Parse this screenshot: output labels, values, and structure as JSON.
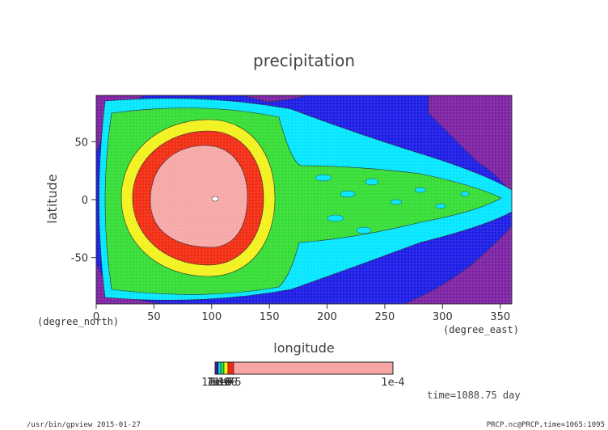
{
  "chart_data": {
    "type": "heatmap",
    "title": "precipitation",
    "xlabel": "longitude",
    "ylabel": "latitude",
    "x_unit": "(degree_east)",
    "y_unit": "(degree_north)",
    "xlim": [
      0,
      360
    ],
    "ylim": [
      -90,
      90
    ],
    "x_ticks": [
      0,
      50,
      100,
      150,
      200,
      250,
      300,
      350
    ],
    "y_ticks": [
      -50,
      0,
      50
    ],
    "colorbar": {
      "labels": [
        "1e-10",
        "1e-9",
        "1e-8",
        "1e-7",
        "1e-6",
        "1e-5",
        "1e-4"
      ],
      "levels": [
        1e-10,
        1e-09,
        1e-08,
        1e-07,
        1e-06,
        1e-05,
        0.0001
      ],
      "colors": [
        "#7b1fa2",
        "#1a1ae6",
        "#00e6ff",
        "#33dd33",
        "#f2f21a",
        "#f22a10",
        "#f7a6a6"
      ]
    },
    "regions": [
      {
        "name": "background-band",
        "color": "#1a1ae6"
      },
      {
        "name": "heated-core",
        "center_lon": 95,
        "center_lat": 5,
        "color": "#f7a6a6"
      }
    ]
  },
  "annotation": "time=1088.75 day",
  "footer": {
    "left": "/usr/bin/gpview  2015-01-27",
    "right": "PRCP.nc@PRCP,time=1065:1095"
  }
}
